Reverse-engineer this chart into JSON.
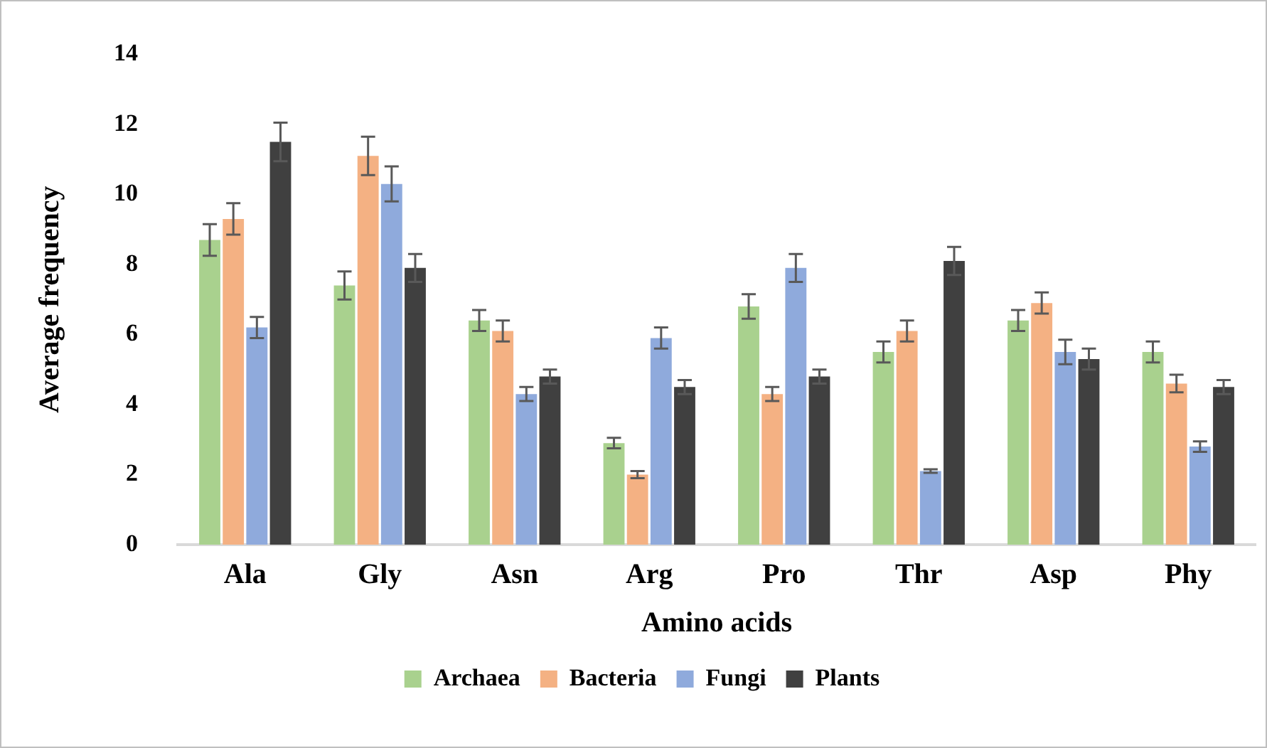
{
  "chart_data": {
    "type": "bar",
    "xlabel": "Amino acids",
    "ylabel": "Average frequency",
    "categories": [
      "Ala",
      "Gly",
      "Asn",
      "Arg",
      "Pro",
      "Thr",
      "Asp",
      "Phy"
    ],
    "series": [
      {
        "name": "Archaea",
        "color": "#a9d18e",
        "values": [
          8.7,
          7.4,
          6.4,
          2.9,
          6.8,
          5.5,
          6.4,
          5.5
        ],
        "errors": [
          0.45,
          0.4,
          0.3,
          0.15,
          0.35,
          0.3,
          0.3,
          0.3
        ]
      },
      {
        "name": "Bacteria",
        "color": "#f4b183",
        "values": [
          9.3,
          11.1,
          6.1,
          2.0,
          4.3,
          6.1,
          6.9,
          4.6
        ],
        "errors": [
          0.45,
          0.55,
          0.3,
          0.1,
          0.2,
          0.3,
          0.3,
          0.25
        ]
      },
      {
        "name": "Fungi",
        "color": "#8faadc",
        "values": [
          6.2,
          10.3,
          4.3,
          5.9,
          7.9,
          2.1,
          5.5,
          2.8
        ],
        "errors": [
          0.3,
          0.5,
          0.2,
          0.3,
          0.4,
          0.05,
          0.35,
          0.15
        ]
      },
      {
        "name": "Plants",
        "color": "#404040",
        "values": [
          11.5,
          7.9,
          4.8,
          4.5,
          4.8,
          8.1,
          5.3,
          4.5
        ],
        "errors": [
          0.55,
          0.4,
          0.2,
          0.2,
          0.2,
          0.4,
          0.3,
          0.2
        ]
      }
    ],
    "ylim": [
      0,
      14
    ],
    "yticks": [
      0,
      2,
      4,
      6,
      8,
      10,
      12,
      14
    ],
    "grid": false,
    "legend": "bottom"
  }
}
